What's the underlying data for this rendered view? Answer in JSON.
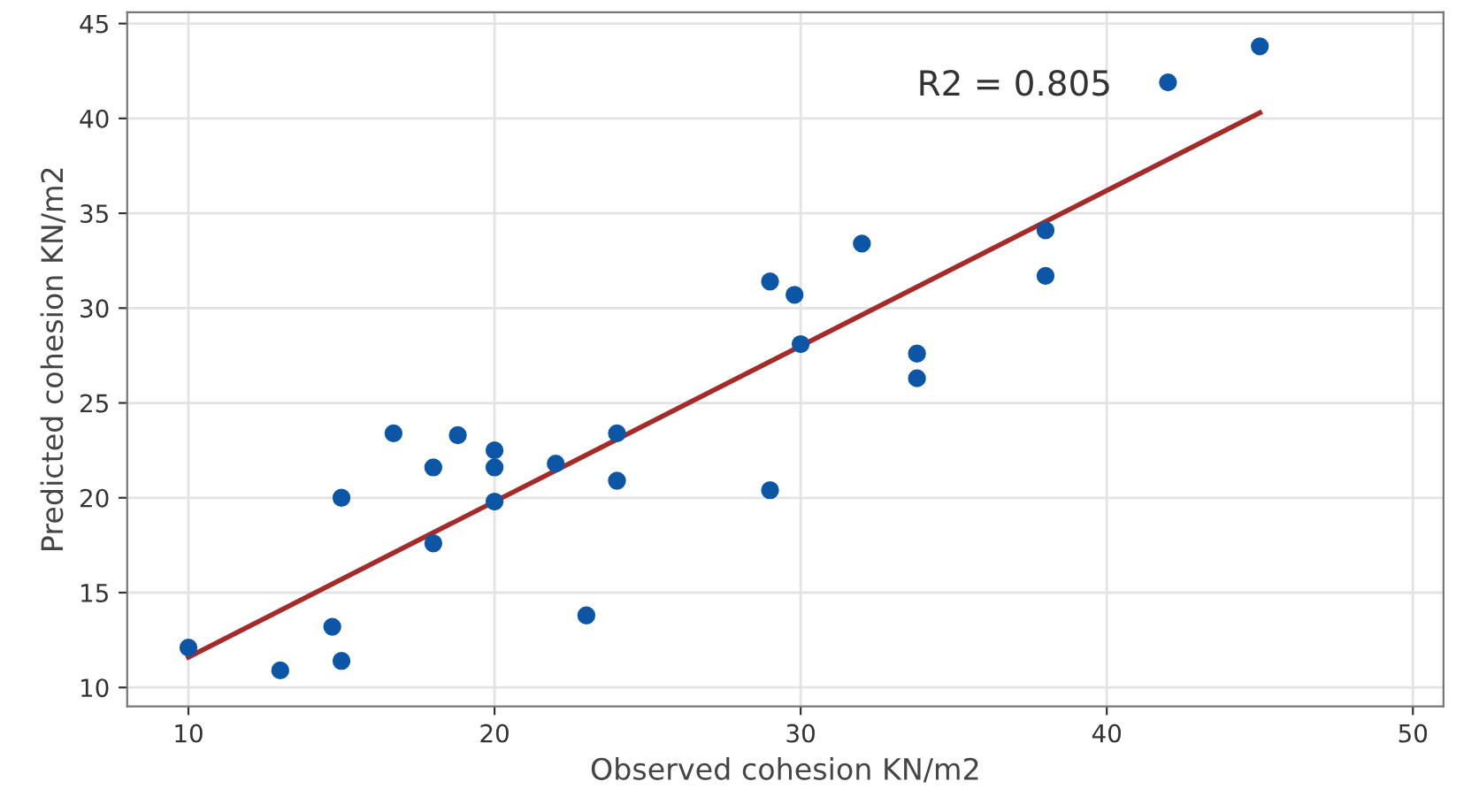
{
  "chart_data": {
    "type": "scatter",
    "xlabel": "Observed cohesion KN/m2",
    "ylabel": "Predicted cohesion KN/m2",
    "annotations": [
      "R2 = 0.805"
    ],
    "series": [
      {
        "color": "#0d56a6",
        "marker": "circle",
        "x": [
          10,
          13,
          14.7,
          15,
          15,
          16.7,
          18,
          18,
          18.8,
          20,
          20,
          20,
          22,
          23,
          24,
          24,
          29,
          29,
          29.8,
          30,
          32,
          33.8,
          33.8,
          38,
          38,
          42,
          45
        ],
        "values": [
          12.1,
          10.9,
          13.2,
          11.4,
          20,
          23.4,
          21.6,
          17.6,
          23.3,
          22.5,
          21.6,
          19.8,
          21.8,
          13.8,
          23.4,
          20.9,
          31.4,
          20.4,
          30.7,
          28.1,
          33.4,
          27.6,
          26.3,
          34.1,
          31.7,
          41.9,
          43.8
        ]
      },
      {
        "type": "line",
        "marker": "none",
        "color": "#a52a2a",
        "x": [
          10,
          45
        ],
        "values": [
          11.6,
          40.3
        ]
      }
    ],
    "grid": true,
    "legend": false,
    "xlim": [
      8,
      51
    ],
    "ylim": [
      9,
      45.6
    ],
    "xticks": [
      10,
      20,
      30,
      40,
      50
    ],
    "yticks": [
      10,
      15,
      20,
      25,
      30,
      35,
      40,
      45
    ]
  }
}
